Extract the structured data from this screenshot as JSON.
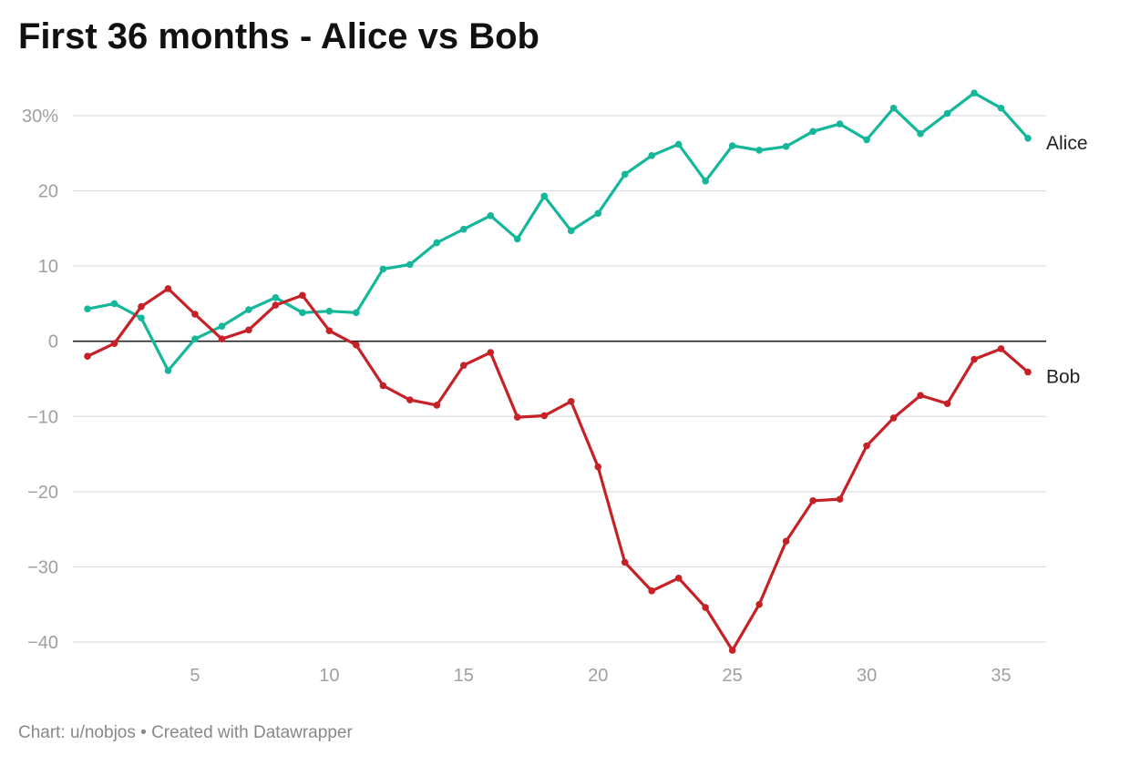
{
  "title": "First 36 months - Alice vs Bob",
  "footer": "Chart: u/nobjos • Created with Datawrapper",
  "chart_data": {
    "type": "line",
    "title": "First 36 months - Alice vs Bob",
    "xlabel": "",
    "ylabel": "",
    "xlim": [
      1,
      36
    ],
    "ylim": [
      -40,
      30
    ],
    "x": [
      1,
      2,
      3,
      4,
      5,
      6,
      7,
      8,
      9,
      10,
      11,
      12,
      13,
      14,
      15,
      16,
      17,
      18,
      19,
      20,
      21,
      22,
      23,
      24,
      25,
      26,
      27,
      28,
      29,
      30,
      31,
      32,
      33,
      34,
      35,
      36
    ],
    "x_ticks": [
      5,
      10,
      15,
      20,
      25,
      30,
      35
    ],
    "x_tick_labels": [
      "5",
      "10",
      "15",
      "20",
      "25",
      "30",
      "35"
    ],
    "y_ticks": [
      30,
      20,
      10,
      0,
      -10,
      -20,
      -30,
      -40
    ],
    "y_tick_labels": [
      "30%",
      "20",
      "10",
      "0",
      "−10",
      "−20",
      "−30",
      "−40"
    ],
    "grid": true,
    "legend": "inline labels at line ends",
    "series": [
      {
        "name": "Alice",
        "color": "#15b79a",
        "values": [
          4.3,
          5.0,
          3.1,
          -3.9,
          0.3,
          2.0,
          4.2,
          5.8,
          3.8,
          4.0,
          3.8,
          9.6,
          10.2,
          13.1,
          14.9,
          16.7,
          13.6,
          19.3,
          14.7,
          17.0,
          22.2,
          24.7,
          26.2,
          21.3,
          26.0,
          25.4,
          25.9,
          27.9,
          28.9,
          26.8,
          31.0,
          27.6,
          30.3,
          33.0,
          31.0,
          27.0
        ]
      },
      {
        "name": "Bob",
        "color": "#c62127",
        "values": [
          -2.0,
          -0.3,
          4.6,
          7.0,
          3.6,
          0.3,
          1.5,
          4.8,
          6.1,
          1.4,
          -0.5,
          -5.9,
          -7.8,
          -8.5,
          -3.2,
          -1.5,
          -10.1,
          -9.9,
          -8.0,
          -16.7,
          -29.4,
          -33.2,
          -31.5,
          -35.4,
          -41.1,
          -35.0,
          -26.6,
          -21.2,
          -21.0,
          -13.9,
          -10.2,
          -7.2,
          -8.3,
          -2.4,
          -1.0,
          -4.1
        ]
      }
    ],
    "colors": {
      "zero_line": "#222222",
      "grid": "#dddddd",
      "tick_text": "#a0a0a0"
    }
  }
}
